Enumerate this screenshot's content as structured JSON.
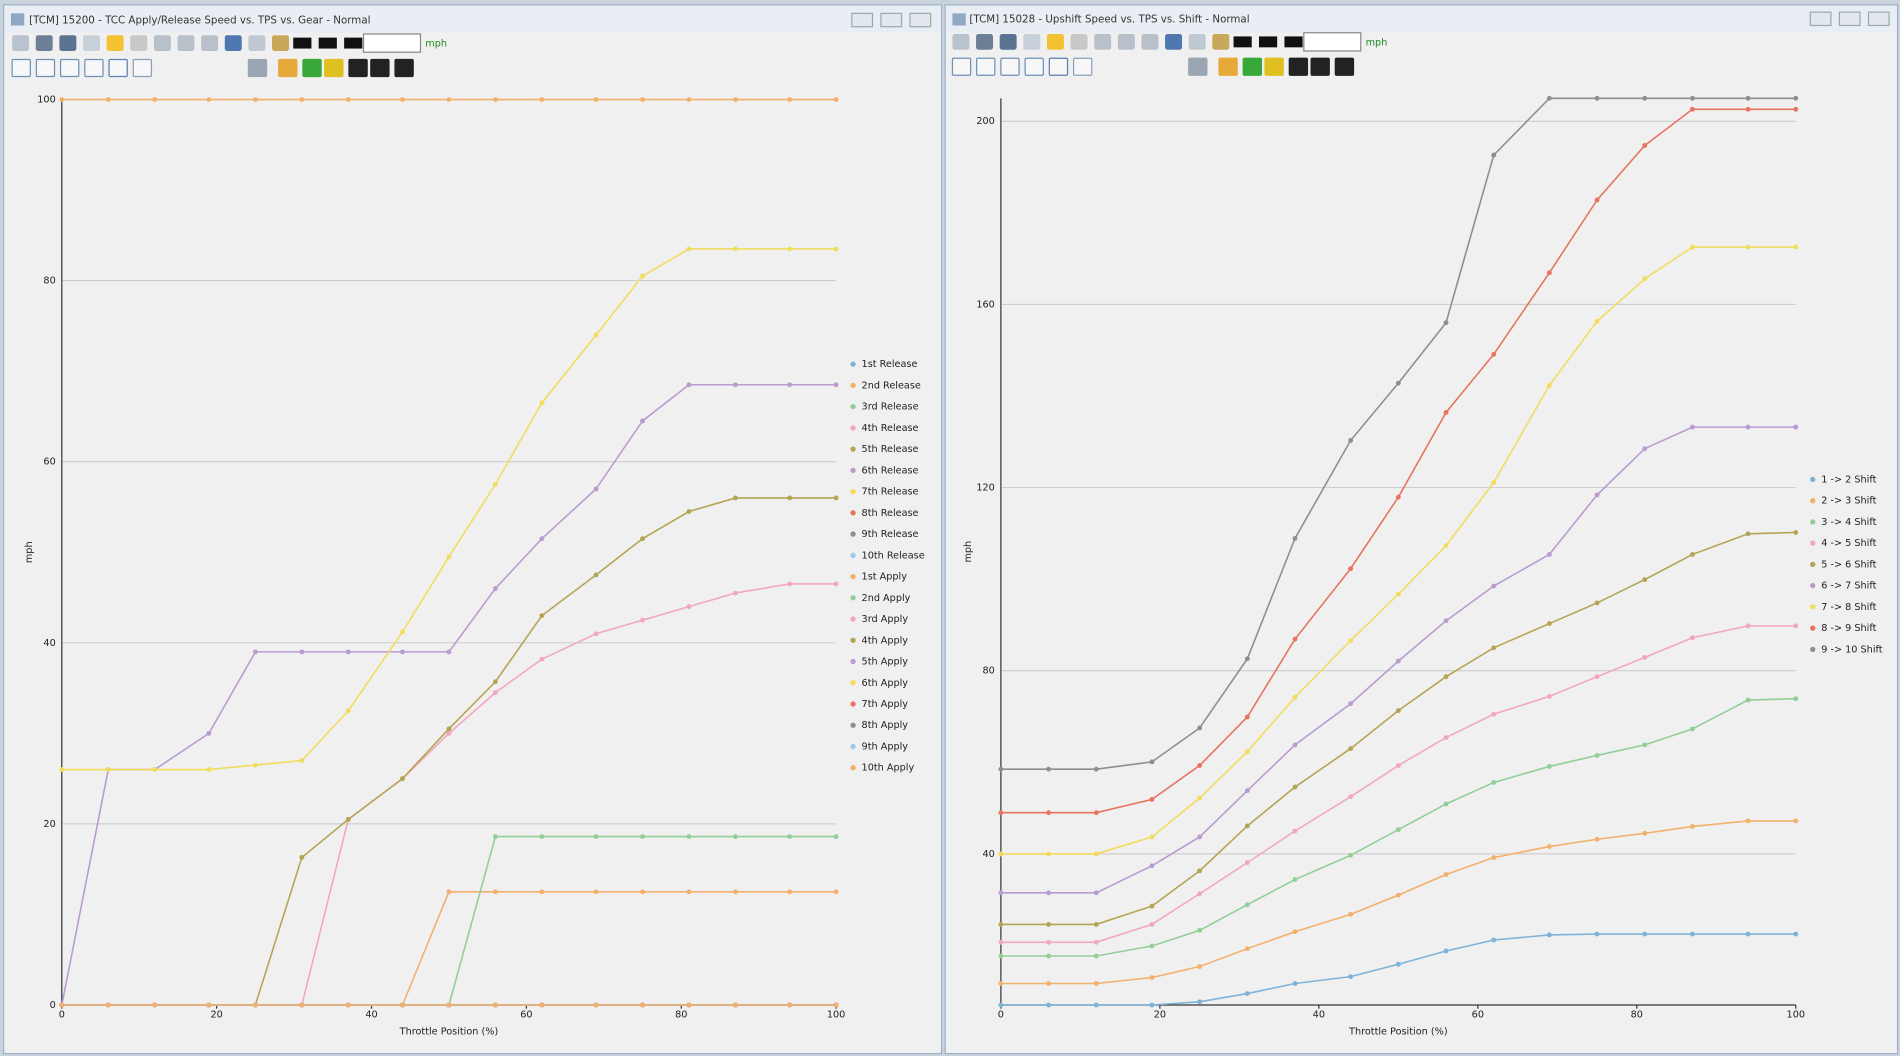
{
  "windows": [
    {
      "title": "[TCM] 15200 - TCC Apply/Release Speed vs. TPS vs. Gear - Normal",
      "unit": "mph"
    },
    {
      "title": "[TCM] 15028 - Upshift Speed vs. TPS vs. Shift - Normal",
      "unit": "mph"
    }
  ],
  "chart_data": [
    {
      "type": "line",
      "xlabel": "Throttle Position (%)",
      "ylabel": "mph",
      "x": [
        0,
        6,
        12,
        19,
        25,
        31,
        37,
        44,
        50,
        56,
        62,
        69,
        75,
        81,
        87,
        94,
        100
      ],
      "xlim": [
        0,
        100
      ],
      "xticks": [
        0,
        20,
        40,
        60,
        80,
        100
      ],
      "ylim": [
        0,
        100
      ],
      "yticks": [
        0,
        20,
        40,
        60,
        80,
        100
      ],
      "grid": true,
      "legend": "right",
      "series": [
        {
          "name": "1st Release",
          "color": "#7fb2d8",
          "values": [
            0,
            0,
            0,
            0,
            0,
            0,
            0,
            0,
            0,
            0,
            0,
            0,
            0,
            0,
            0,
            0,
            0
          ]
        },
        {
          "name": "2nd Release",
          "color": "#f2b06c",
          "values": [
            100,
            100,
            100,
            100,
            100,
            100,
            100,
            100,
            100,
            100,
            100,
            100,
            100,
            100,
            100,
            100,
            100
          ]
        },
        {
          "name": "3rd Release",
          "color": "#92cf97",
          "values": [
            0,
            0,
            0,
            0,
            0,
            0,
            0,
            0,
            0,
            0,
            0,
            0,
            0,
            0,
            0,
            0,
            0
          ]
        },
        {
          "name": "4th Release",
          "color": "#f3a6c0",
          "values": [
            0,
            0,
            0,
            0,
            0,
            0,
            0,
            0,
            0,
            0,
            0,
            0,
            0,
            0,
            0,
            0,
            0
          ]
        },
        {
          "name": "5th Release",
          "color": "#b3a553",
          "values": [
            0,
            0,
            0,
            0,
            0,
            0,
            0,
            0,
            0,
            0,
            0,
            0,
            0,
            0,
            0,
            0,
            0
          ]
        },
        {
          "name": "6th Release",
          "color": "#b99bd1",
          "values": [
            0,
            0,
            0,
            0,
            0,
            0,
            0,
            0,
            0,
            0,
            0,
            0,
            0,
            0,
            0,
            0,
            0
          ]
        },
        {
          "name": "7th Release",
          "color": "#f2dc5c",
          "values": [
            0,
            0,
            0,
            0,
            0,
            0,
            0,
            0,
            0,
            0,
            0,
            0,
            0,
            0,
            0,
            0,
            0
          ]
        },
        {
          "name": "8th Release",
          "color": "#e8735f",
          "values": [
            0,
            0,
            0,
            0,
            0,
            0,
            0,
            0,
            0,
            0,
            0,
            0,
            0,
            0,
            0,
            0,
            0
          ]
        },
        {
          "name": "9th Release",
          "color": "#8e8e8e",
          "values": [
            0,
            0,
            0,
            0,
            0,
            0,
            0,
            0,
            0,
            0,
            0,
            0,
            0,
            0,
            0,
            0,
            0
          ]
        },
        {
          "name": "10th Release",
          "color": "#9ccbe6",
          "values": [
            0,
            0,
            0,
            0,
            0,
            0,
            0,
            0,
            0,
            0,
            0,
            0,
            0,
            0,
            0,
            0,
            0
          ]
        },
        {
          "name": "1st Apply",
          "color": "#f2b06c",
          "values": [
            0,
            0,
            0,
            0,
            0,
            0,
            0,
            0,
            12.5,
            12.5,
            12.5,
            12.5,
            12.5,
            12.5,
            12.5,
            12.5,
            12.5
          ]
        },
        {
          "name": "2nd Apply",
          "color": "#92cf97",
          "values": [
            0,
            0,
            0,
            0,
            0,
            0,
            0,
            0,
            0,
            18.6,
            18.6,
            18.6,
            18.6,
            18.6,
            18.6,
            18.6,
            18.6
          ]
        },
        {
          "name": "3rd Apply",
          "color": "#f3a6c0",
          "values": [
            0,
            0,
            0,
            0,
            0,
            0,
            20.5,
            25,
            30,
            34.5,
            38.2,
            41,
            42.5,
            44,
            45.5,
            46.5,
            46.5
          ]
        },
        {
          "name": "4th Apply",
          "color": "#b3a553",
          "values": [
            0,
            0,
            0,
            0,
            0,
            16.3,
            20.5,
            25,
            30.5,
            35.7,
            43,
            47.5,
            51.5,
            54.5,
            56,
            56,
            56
          ]
        },
        {
          "name": "5th Apply",
          "color": "#b99bd1",
          "values": [
            0,
            26,
            26,
            30,
            39,
            39,
            39,
            39,
            39,
            46,
            51.5,
            57,
            64.5,
            68.5,
            68.5,
            68.5,
            68.5
          ]
        },
        {
          "name": "6th Apply",
          "color": "#f2dc5c",
          "values": [
            26,
            26,
            26,
            26,
            26.5,
            27,
            32.5,
            41.2,
            49.5,
            57.5,
            66.5,
            74,
            80.5,
            83.5,
            83.5,
            83.5,
            83.5
          ]
        },
        {
          "name": "7th Apply",
          "color": "#e8735f",
          "values": [
            0,
            0,
            0,
            0,
            0,
            0,
            0,
            0,
            0,
            0,
            0,
            0,
            0,
            0,
            0,
            0,
            0
          ]
        },
        {
          "name": "8th Apply",
          "color": "#8e8e8e",
          "values": [
            0,
            0,
            0,
            0,
            0,
            0,
            0,
            0,
            0,
            0,
            0,
            0,
            0,
            0,
            0,
            0,
            0
          ]
        },
        {
          "name": "9th Apply",
          "color": "#9ccbe6",
          "values": [
            0,
            0,
            0,
            0,
            0,
            0,
            0,
            0,
            0,
            0,
            0,
            0,
            0,
            0,
            0,
            0,
            0
          ]
        },
        {
          "name": "10th Apply",
          "color": "#f2b06c",
          "values": [
            0,
            0,
            0,
            0,
            0,
            0,
            0,
            0,
            0,
            0,
            0,
            0,
            0,
            0,
            0,
            0,
            0
          ]
        }
      ]
    },
    {
      "type": "line",
      "xlabel": "Throttle Position (%)",
      "ylabel": "mph",
      "x": [
        0,
        6,
        12,
        19,
        25,
        31,
        37,
        44,
        50,
        56,
        62,
        69,
        75,
        81,
        87,
        94,
        100
      ],
      "xlim": [
        0,
        100
      ],
      "xticks": [
        0,
        20,
        40,
        60,
        80,
        100
      ],
      "ylim": [
        7,
        205
      ],
      "yticks": [
        40,
        80,
        120,
        160,
        200
      ],
      "grid": true,
      "legend": "right",
      "series": [
        {
          "name": "1 -> 2 Shift",
          "color": "#7fb2d8",
          "values": [
            7,
            7,
            7,
            7,
            7.7,
            9.5,
            11.7,
            13.2,
            15.9,
            18.8,
            21.2,
            22.3,
            22.5,
            22.5,
            22.5,
            22.5,
            22.5
          ]
        },
        {
          "name": "2 -> 3 Shift",
          "color": "#f2b06c",
          "values": [
            11.7,
            11.7,
            11.7,
            13,
            15.4,
            19.3,
            23,
            26.8,
            31,
            35.5,
            39.2,
            41.6,
            43.2,
            44.5,
            46,
            47.2,
            47.2
          ]
        },
        {
          "name": "3 -> 4 Shift",
          "color": "#92cf97",
          "values": [
            17.7,
            17.7,
            17.7,
            19.9,
            23.3,
            28.9,
            34.4,
            39.7,
            45.3,
            50.9,
            55.6,
            59.1,
            61.5,
            63.8,
            67.3,
            73.6,
            73.9
          ]
        },
        {
          "name": "4 -> 5 Shift",
          "color": "#f3a6c0",
          "values": [
            20.7,
            20.7,
            20.7,
            24.6,
            31.3,
            38.1,
            45,
            52.5,
            59.3,
            65.4,
            70.5,
            74.4,
            78.7,
            82.9,
            87.2,
            89.8,
            89.8
          ]
        },
        {
          "name": "5 -> 6 Shift",
          "color": "#b3a553",
          "values": [
            24.6,
            24.6,
            24.6,
            28.6,
            36.3,
            46.1,
            54.6,
            63,
            71.3,
            78.7,
            85,
            90.3,
            94.8,
            99.9,
            105.4,
            109.9,
            110.2
          ]
        },
        {
          "name": "6 -> 7 Shift",
          "color": "#b99bd1",
          "values": [
            31.5,
            31.5,
            31.5,
            37.4,
            43.7,
            53.8,
            63.8,
            72.8,
            82.1,
            90.9,
            98.5,
            105.4,
            118.4,
            128.5,
            133.2,
            133.2,
            133.2
          ]
        },
        {
          "name": "7 -> 8 Shift",
          "color": "#f2dc5c",
          "values": [
            40,
            40,
            40,
            43.7,
            52.2,
            62.3,
            74.2,
            86.6,
            96.7,
            107.3,
            121.1,
            142.3,
            156.3,
            165.6,
            172.5,
            172.5,
            172.5
          ]
        },
        {
          "name": "8 -> 9 Shift",
          "color": "#e8735f",
          "values": [
            49,
            49,
            49,
            51.9,
            59.3,
            69.9,
            86.9,
            102.3,
            117.9,
            136.4,
            149.1,
            166.9,
            182.8,
            194.7,
            202.6,
            202.6,
            202.6
          ]
        },
        {
          "name": "9 -> 10 Shift",
          "color": "#8e8e8e",
          "values": [
            58.5,
            58.5,
            58.5,
            60.1,
            67.5,
            82.6,
            108.9,
            130.3,
            142.8,
            156,
            192.6,
            205,
            205,
            205,
            205,
            205,
            205
          ]
        }
      ]
    }
  ]
}
